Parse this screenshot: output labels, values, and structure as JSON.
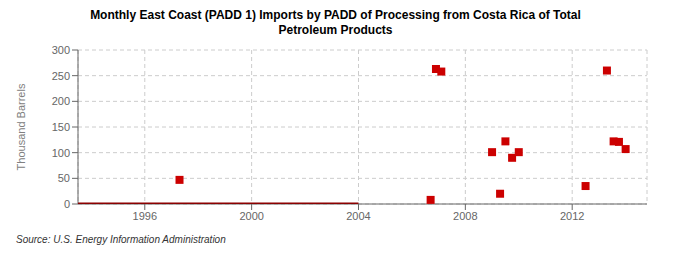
{
  "chart_data": {
    "type": "scatter",
    "title": "Monthly East Coast (PADD 1) Imports by PADD of Processing from Costa Rica of Total\nPetroleum Products",
    "ylabel": "Thousand Barrels",
    "annotations": [
      "Source: U.S. Energy Information Administration"
    ],
    "xlim": [
      1993.5,
      2014.8
    ],
    "xticks": [
      1996,
      2000,
      2004,
      2008,
      2012
    ],
    "ylim": [
      0,
      300
    ],
    "yticks": [
      0,
      50,
      100,
      150,
      200,
      250,
      300
    ],
    "grid": true,
    "series": [
      {
        "type": "line",
        "color": "#8b0000",
        "x": [
          1993.5,
          2004.0
        ],
        "values": [
          0,
          0
        ]
      },
      {
        "type": "scatter",
        "color": "#cc0000",
        "marker": "square",
        "x": [
          1997.3,
          2006.7,
          2006.9,
          2007.1,
          2009.0,
          2009.3,
          2009.5,
          2009.75,
          2010.0,
          2012.5,
          2013.3,
          2013.55,
          2013.75,
          2014.0
        ],
        "values": [
          47,
          8,
          263,
          258,
          101,
          20,
          122,
          90,
          101,
          35,
          260,
          122,
          121,
          107
        ]
      }
    ]
  }
}
